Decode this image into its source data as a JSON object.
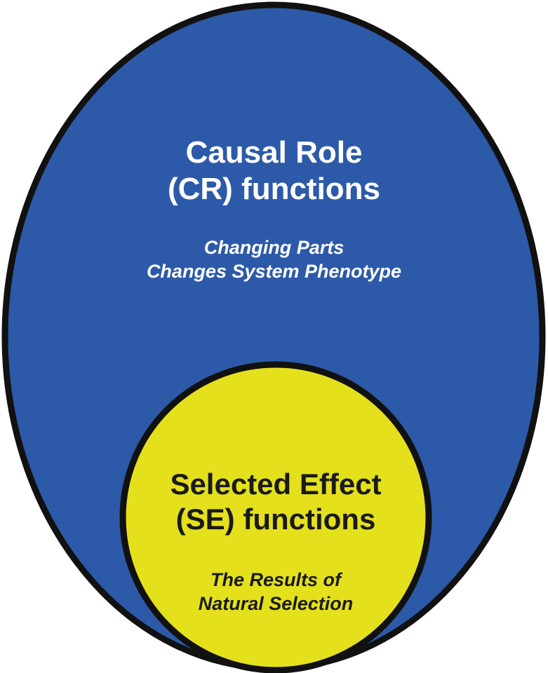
{
  "outer": {
    "title_line1": "Causal Role",
    "title_line2": "(CR) functions",
    "sub_line1": "Changing Parts",
    "sub_line2": "Changes System Phenotype",
    "fill": "#2d5aa8"
  },
  "inner": {
    "title_line1": "Selected Effect",
    "title_line2": "(SE) functions",
    "sub_line1": "The Results of",
    "sub_line2": "Natural Selection",
    "fill": "#e4e01c"
  },
  "outline": "#111111"
}
